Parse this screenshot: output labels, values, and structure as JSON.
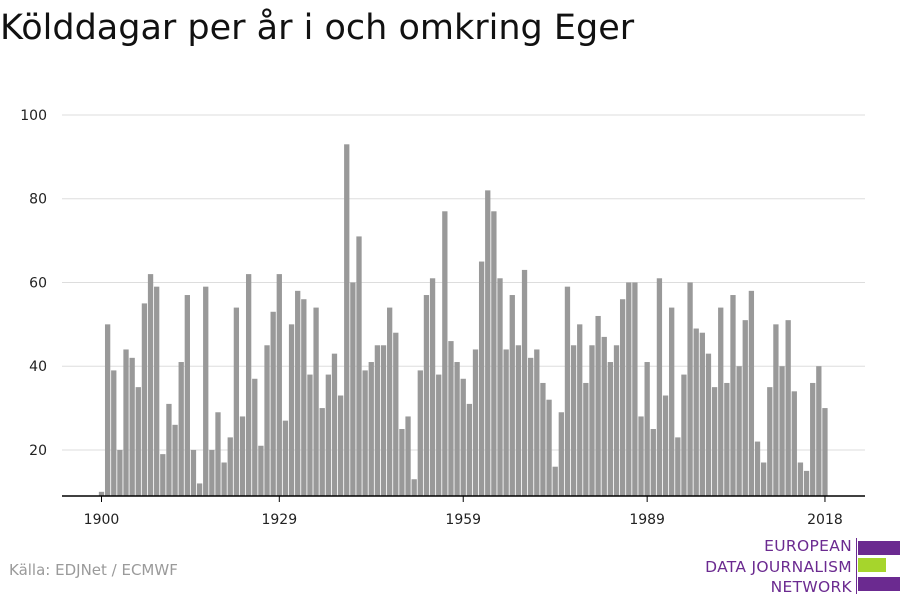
{
  "title": "Kölddagar per år i och omkring Eger",
  "source": "Källa: EDJNet / ECMWF",
  "logo": {
    "lines": [
      "EUROPEAN",
      "DATA JOURNALISM",
      "NETWORK"
    ],
    "color_purple": "#6b2a90",
    "color_green": "#a6d52c"
  },
  "colors": {
    "bar": "#999999",
    "grid": "#dddddd",
    "axis": "#000000",
    "text": "#222222"
  },
  "chart_data": {
    "type": "bar",
    "title": "Kölddagar per år i och omkring Eger",
    "xlabel": "",
    "ylabel": "",
    "x_start": 1900,
    "x_end": 2021,
    "xticks": [
      1900,
      1929,
      1959,
      1989,
      2018
    ],
    "yticks": [
      20,
      40,
      60,
      80,
      100
    ],
    "ylim": [
      9,
      100
    ],
    "grid": true,
    "values": [
      10,
      50,
      39,
      20,
      44,
      42,
      35,
      55,
      62,
      59,
      19,
      31,
      26,
      41,
      57,
      20,
      12,
      59,
      20,
      29,
      17,
      23,
      54,
      28,
      62,
      37,
      21,
      45,
      53,
      62,
      27,
      50,
      58,
      56,
      38,
      54,
      30,
      38,
      43,
      33,
      93,
      60,
      71,
      39,
      41,
      45,
      45,
      54,
      48,
      25,
      28,
      13,
      39,
      57,
      61,
      38,
      77,
      46,
      41,
      37,
      31,
      44,
      65,
      82,
      77,
      61,
      44,
      57,
      45,
      63,
      42,
      44,
      36,
      32,
      16,
      29,
      59,
      45,
      50,
      36,
      45,
      52,
      47,
      41,
      45,
      56,
      60,
      60,
      28,
      41,
      25,
      61,
      33,
      54,
      23,
      38,
      60,
      49,
      48,
      43,
      35,
      54,
      36,
      57,
      40,
      51,
      58,
      22,
      17,
      35,
      50,
      40,
      51,
      34,
      17,
      15,
      36,
      40,
      30
    ]
  }
}
